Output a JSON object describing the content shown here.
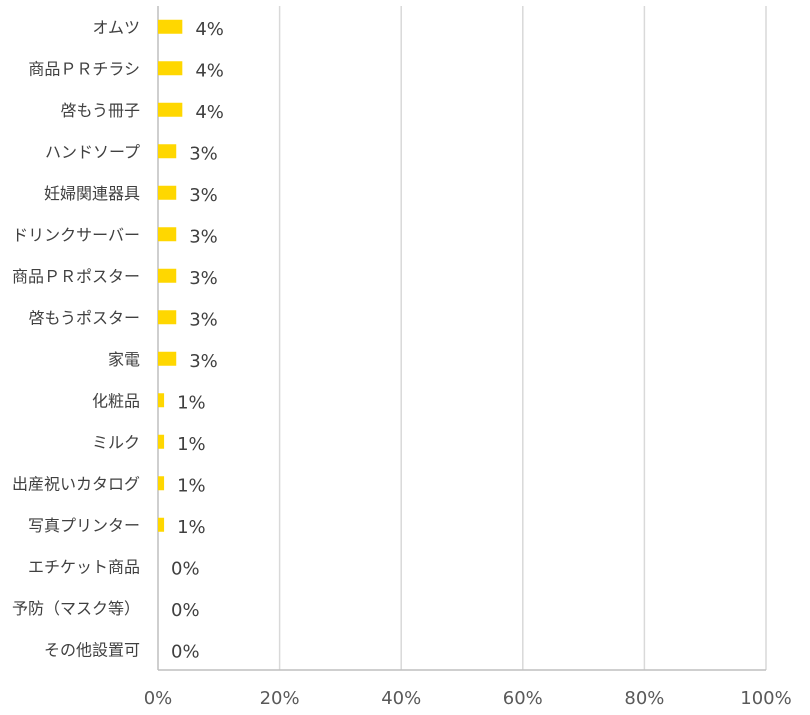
{
  "chart_data": {
    "type": "bar",
    "orientation": "horizontal",
    "categories": [
      "オムツ",
      "商品ＰＲチラシ",
      "啓もう冊子",
      "ハンドソープ",
      "妊婦関連器具",
      "ドリンクサーバー",
      "商品ＰＲポスター",
      "啓もうポスター",
      "家電",
      "化粧品",
      "ミルク",
      "出産祝いカタログ",
      "写真プリンター",
      "エチケット商品",
      "予防（マスク等）",
      "その他設置可"
    ],
    "values": [
      4,
      4,
      4,
      3,
      3,
      3,
      3,
      3,
      3,
      1,
      1,
      1,
      1,
      0,
      0,
      0
    ],
    "data_labels": [
      "4%",
      "4%",
      "4%",
      "3%",
      "3%",
      "3%",
      "3%",
      "3%",
      "3%",
      "1%",
      "1%",
      "1%",
      "1%",
      "0%",
      "0%",
      "0%"
    ],
    "xlim": [
      0,
      100
    ],
    "x_ticks": [
      0,
      20,
      40,
      60,
      80,
      100
    ],
    "x_tick_labels": [
      "0%",
      "20%",
      "40%",
      "60%",
      "80%",
      "100%"
    ],
    "grid": true,
    "bar_color": "#FFD700",
    "grid_color": "#D9D9D9"
  }
}
